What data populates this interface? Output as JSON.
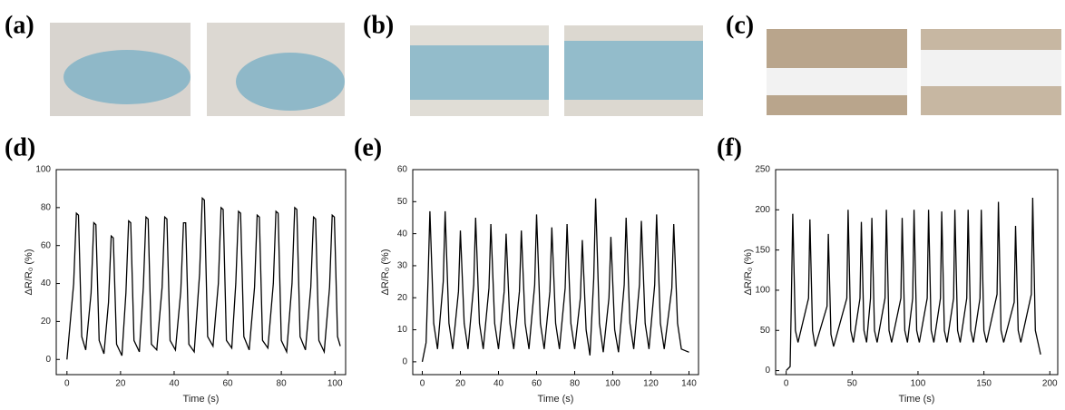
{
  "panels": [
    "(a)",
    "(b)",
    "(c)",
    "(d)",
    "(e)",
    "(f)"
  ],
  "chart_data": [
    {
      "type": "line",
      "xlabel": "Time (s)",
      "ylabel": "ΔR/R₀ (%)",
      "color": "#000000",
      "xlim": [
        -4,
        104
      ],
      "ylim": [
        -8,
        100
      ],
      "xticks": [
        0,
        20,
        40,
        60,
        80,
        100
      ],
      "yticks": [
        0,
        20,
        40,
        60,
        80,
        100
      ],
      "x": [
        0,
        2.5,
        3.5,
        4.3,
        5.5,
        7,
        9,
        10,
        10.8,
        12,
        13.8,
        15.5,
        16.5,
        17.3,
        18.5,
        20.5,
        22,
        23,
        23.8,
        25,
        27,
        28.5,
        29.5,
        30.3,
        31.5,
        33.5,
        35.5,
        36.5,
        37.3,
        38.5,
        40.5,
        42.5,
        43.5,
        44.3,
        45.5,
        47.5,
        49.5,
        50.5,
        51.3,
        52.5,
        54.5,
        56.5,
        57.5,
        58.3,
        59.5,
        61.5,
        63,
        64,
        64.8,
        66,
        68,
        70,
        71,
        71.8,
        73,
        75,
        77,
        78,
        78.8,
        80,
        82,
        84,
        85,
        85.8,
        87,
        89,
        91,
        92,
        92.8,
        94,
        96,
        98,
        99,
        99.8,
        101,
        102
      ],
      "values": [
        0,
        40,
        77,
        76,
        12,
        5,
        35,
        72,
        71,
        10,
        3,
        30,
        65,
        64,
        8,
        2,
        35,
        73,
        72,
        10,
        4,
        38,
        75,
        74,
        8,
        5,
        38,
        75,
        74,
        10,
        5,
        36,
        72,
        72,
        8,
        4,
        45,
        85,
        84,
        12,
        7,
        40,
        80,
        79,
        10,
        6,
        40,
        78,
        77,
        12,
        5,
        38,
        76,
        75,
        10,
        6,
        40,
        78,
        77,
        10,
        4,
        40,
        80,
        79,
        12,
        5,
        38,
        75,
        74,
        10,
        4,
        38,
        76,
        75,
        12,
        7
      ]
    },
    {
      "type": "line",
      "xlabel": "Time (s)",
      "ylabel": "ΔR/R₀ (%)",
      "color": "#000000",
      "xlim": [
        -5,
        145
      ],
      "ylim": [
        -4,
        60
      ],
      "xticks": [
        0,
        20,
        40,
        60,
        80,
        100,
        120,
        140
      ],
      "yticks": [
        0,
        10,
        20,
        30,
        40,
        50,
        60
      ],
      "x": [
        0,
        2,
        3,
        4,
        6,
        8,
        11,
        12,
        14,
        16,
        19,
        20,
        22,
        24,
        27,
        28,
        30,
        32,
        35,
        36,
        38,
        40,
        43,
        44,
        46,
        48,
        51,
        52,
        54,
        56,
        59,
        60,
        62,
        64,
        67,
        68,
        70,
        72,
        75,
        76,
        78,
        80,
        83,
        84,
        86,
        88,
        90,
        91,
        93,
        95,
        98,
        99,
        101,
        103,
        106,
        107,
        109,
        111,
        114,
        115,
        117,
        119,
        122,
        123,
        125,
        127,
        131,
        132,
        134,
        136,
        140
      ],
      "values": [
        0,
        6,
        25,
        47,
        12,
        4,
        25,
        47,
        12,
        4,
        22,
        41,
        12,
        4,
        24,
        45,
        12,
        4,
        23,
        43,
        12,
        4,
        22,
        40,
        12,
        4,
        22,
        41,
        12,
        4,
        24,
        46,
        12,
        4,
        22,
        42,
        12,
        4,
        23,
        43,
        12,
        4,
        20,
        38,
        10,
        2,
        26,
        51,
        12,
        3,
        20,
        39,
        10,
        3,
        24,
        45,
        12,
        4,
        24,
        44,
        12,
        4,
        24,
        46,
        12,
        4,
        23,
        43,
        12,
        4,
        3
      ]
    },
    {
      "type": "line",
      "xlabel": "Time (s)",
      "ylabel": "ΔR/R₀ (%)",
      "color": "#000000",
      "xlim": [
        -8,
        206
      ],
      "ylim": [
        -5,
        250
      ],
      "xticks": [
        0,
        50,
        100,
        150,
        200
      ],
      "yticks": [
        0,
        50,
        100,
        150,
        200,
        250
      ],
      "x": [
        0,
        3,
        4,
        5,
        7,
        9,
        17,
        18,
        20,
        22,
        31,
        32,
        34,
        36,
        46,
        47,
        49,
        51,
        56,
        57,
        59,
        61,
        64,
        65,
        67,
        69,
        75,
        76,
        78,
        80,
        87,
        88,
        90,
        92,
        96,
        97,
        99,
        101,
        107,
        108,
        110,
        112,
        117,
        118,
        120,
        122,
        127,
        128,
        130,
        132,
        137,
        138,
        140,
        142,
        147,
        148,
        150,
        152,
        160,
        161,
        163,
        165,
        173,
        174,
        176,
        178,
        186,
        187,
        189,
        191,
        193
      ],
      "values": [
        0,
        5,
        90,
        195,
        50,
        35,
        90,
        188,
        50,
        30,
        80,
        170,
        45,
        30,
        90,
        200,
        50,
        35,
        90,
        185,
        50,
        35,
        90,
        190,
        50,
        35,
        90,
        200,
        50,
        35,
        90,
        190,
        50,
        35,
        90,
        200,
        50,
        35,
        90,
        200,
        50,
        35,
        90,
        198,
        50,
        35,
        90,
        200,
        50,
        35,
        90,
        200,
        50,
        35,
        90,
        200,
        50,
        35,
        95,
        210,
        50,
        35,
        85,
        180,
        50,
        35,
        95,
        215,
        50,
        35,
        20
      ]
    }
  ]
}
